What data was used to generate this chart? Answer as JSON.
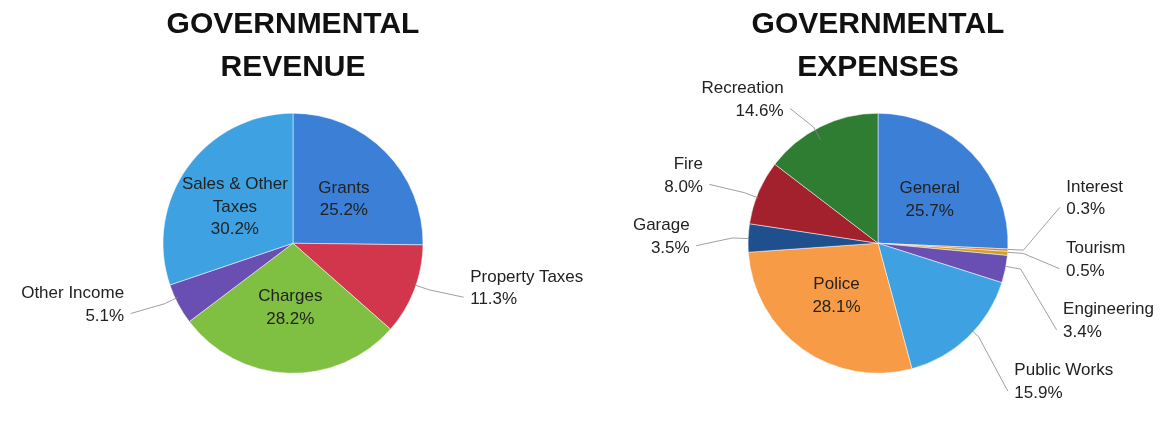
{
  "chart_data": [
    {
      "type": "pie",
      "title": "GOVERNMENTAL\nREVENUE",
      "categories": [
        "Grants",
        "Property Taxes",
        "Charges",
        "Other Income",
        "Sales & Other Taxes"
      ],
      "values": [
        25.2,
        11.3,
        28.2,
        5.1,
        30.2
      ],
      "colors": [
        "#3b7fd6",
        "#d2364c",
        "#7fbf42",
        "#6a4fb3",
        "#3ea2e2"
      ],
      "value_labels": [
        "25.2%",
        "11.3%",
        "28.2%",
        "5.1%",
        "30.2%"
      ]
    },
    {
      "type": "pie",
      "title": "GOVERNMENTAL\nEXPENSES",
      "categories": [
        "General",
        "Interest",
        "Tourism",
        "Engineering",
        "Public Works",
        "Police",
        "Garage",
        "Fire",
        "Recreation"
      ],
      "values": [
        25.7,
        0.3,
        0.5,
        3.4,
        15.9,
        28.1,
        3.5,
        8.0,
        14.6
      ],
      "colors": [
        "#3b7fd6",
        "#e07b2a",
        "#c9a227",
        "#6a4fb3",
        "#3ea2e2",
        "#f79b46",
        "#1f4f8c",
        "#a3212c",
        "#2f7d32"
      ],
      "value_labels": [
        "25.7%",
        "0.3%",
        "0.5%",
        "3.4%",
        "15.9%",
        "28.1%",
        "3.5%",
        "8.0%",
        "14.6%"
      ]
    }
  ]
}
